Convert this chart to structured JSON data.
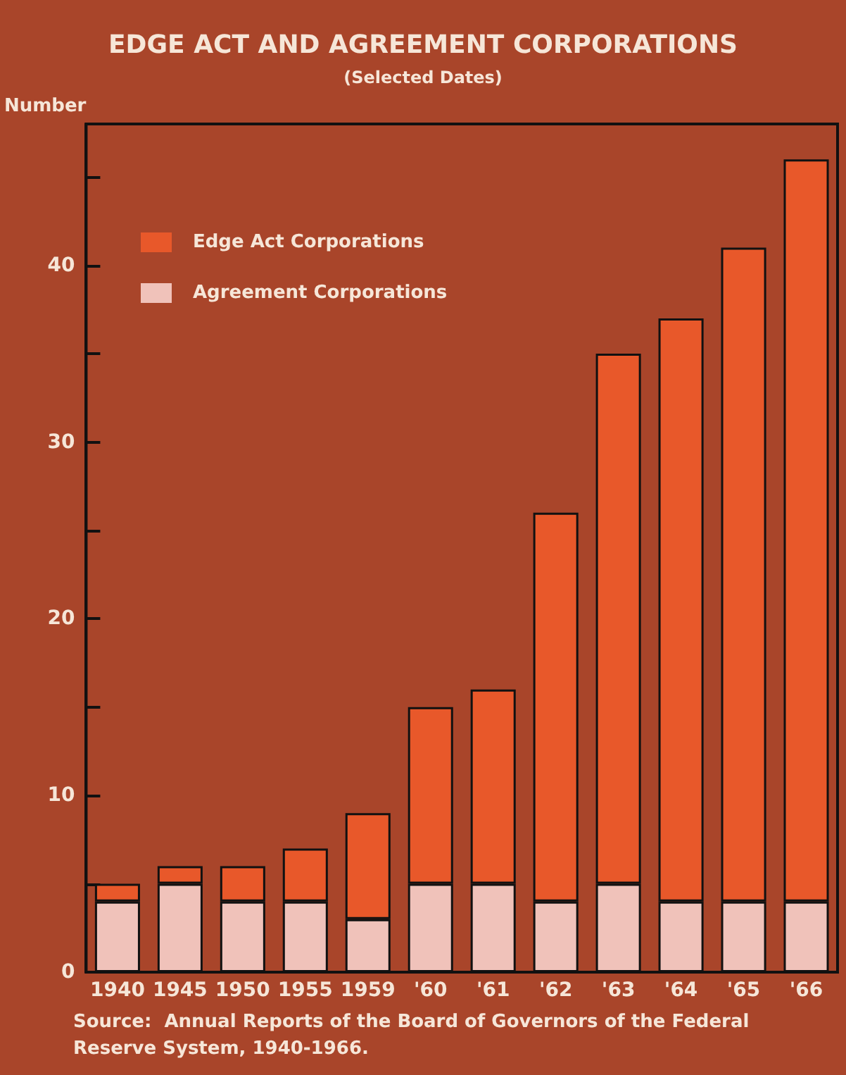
{
  "chart_data": {
    "type": "bar",
    "title": "EDGE ACT AND AGREEMENT CORPORATIONS",
    "subtitle": "(Selected Dates)",
    "ylabel": "Number",
    "annotations": [
      "Source:  Annual Reports of the Board of Governors of the Federal Reserve System, 1940-1966."
    ],
    "categories": [
      "1940",
      "1945",
      "1950",
      "1955",
      "1959",
      "'60",
      "'61",
      "'62",
      "'63",
      "'64",
      "'65",
      "'66"
    ],
    "stacked": true,
    "series": [
      {
        "name": "Agreement Corporations",
        "color": "#f0c2ba",
        "values": [
          4,
          5,
          4,
          4,
          3,
          5,
          5,
          4,
          5,
          4,
          4,
          4
        ]
      },
      {
        "name": "Edge Act Corporations",
        "color": "#e8582a",
        "values": [
          1,
          1,
          2,
          3,
          6,
          10,
          11,
          22,
          30,
          33,
          37,
          42
        ]
      }
    ],
    "ylim": [
      0,
      48
    ],
    "yticks": [
      0,
      {
        "value": 5,
        "label": null
      },
      10,
      {
        "value": 15,
        "label": null
      },
      20,
      {
        "value": 25,
        "label": null
      },
      30,
      {
        "value": 35,
        "label": null
      },
      40,
      {
        "value": 45,
        "label": null
      }
    ],
    "grid": false,
    "legend": "top left"
  }
}
